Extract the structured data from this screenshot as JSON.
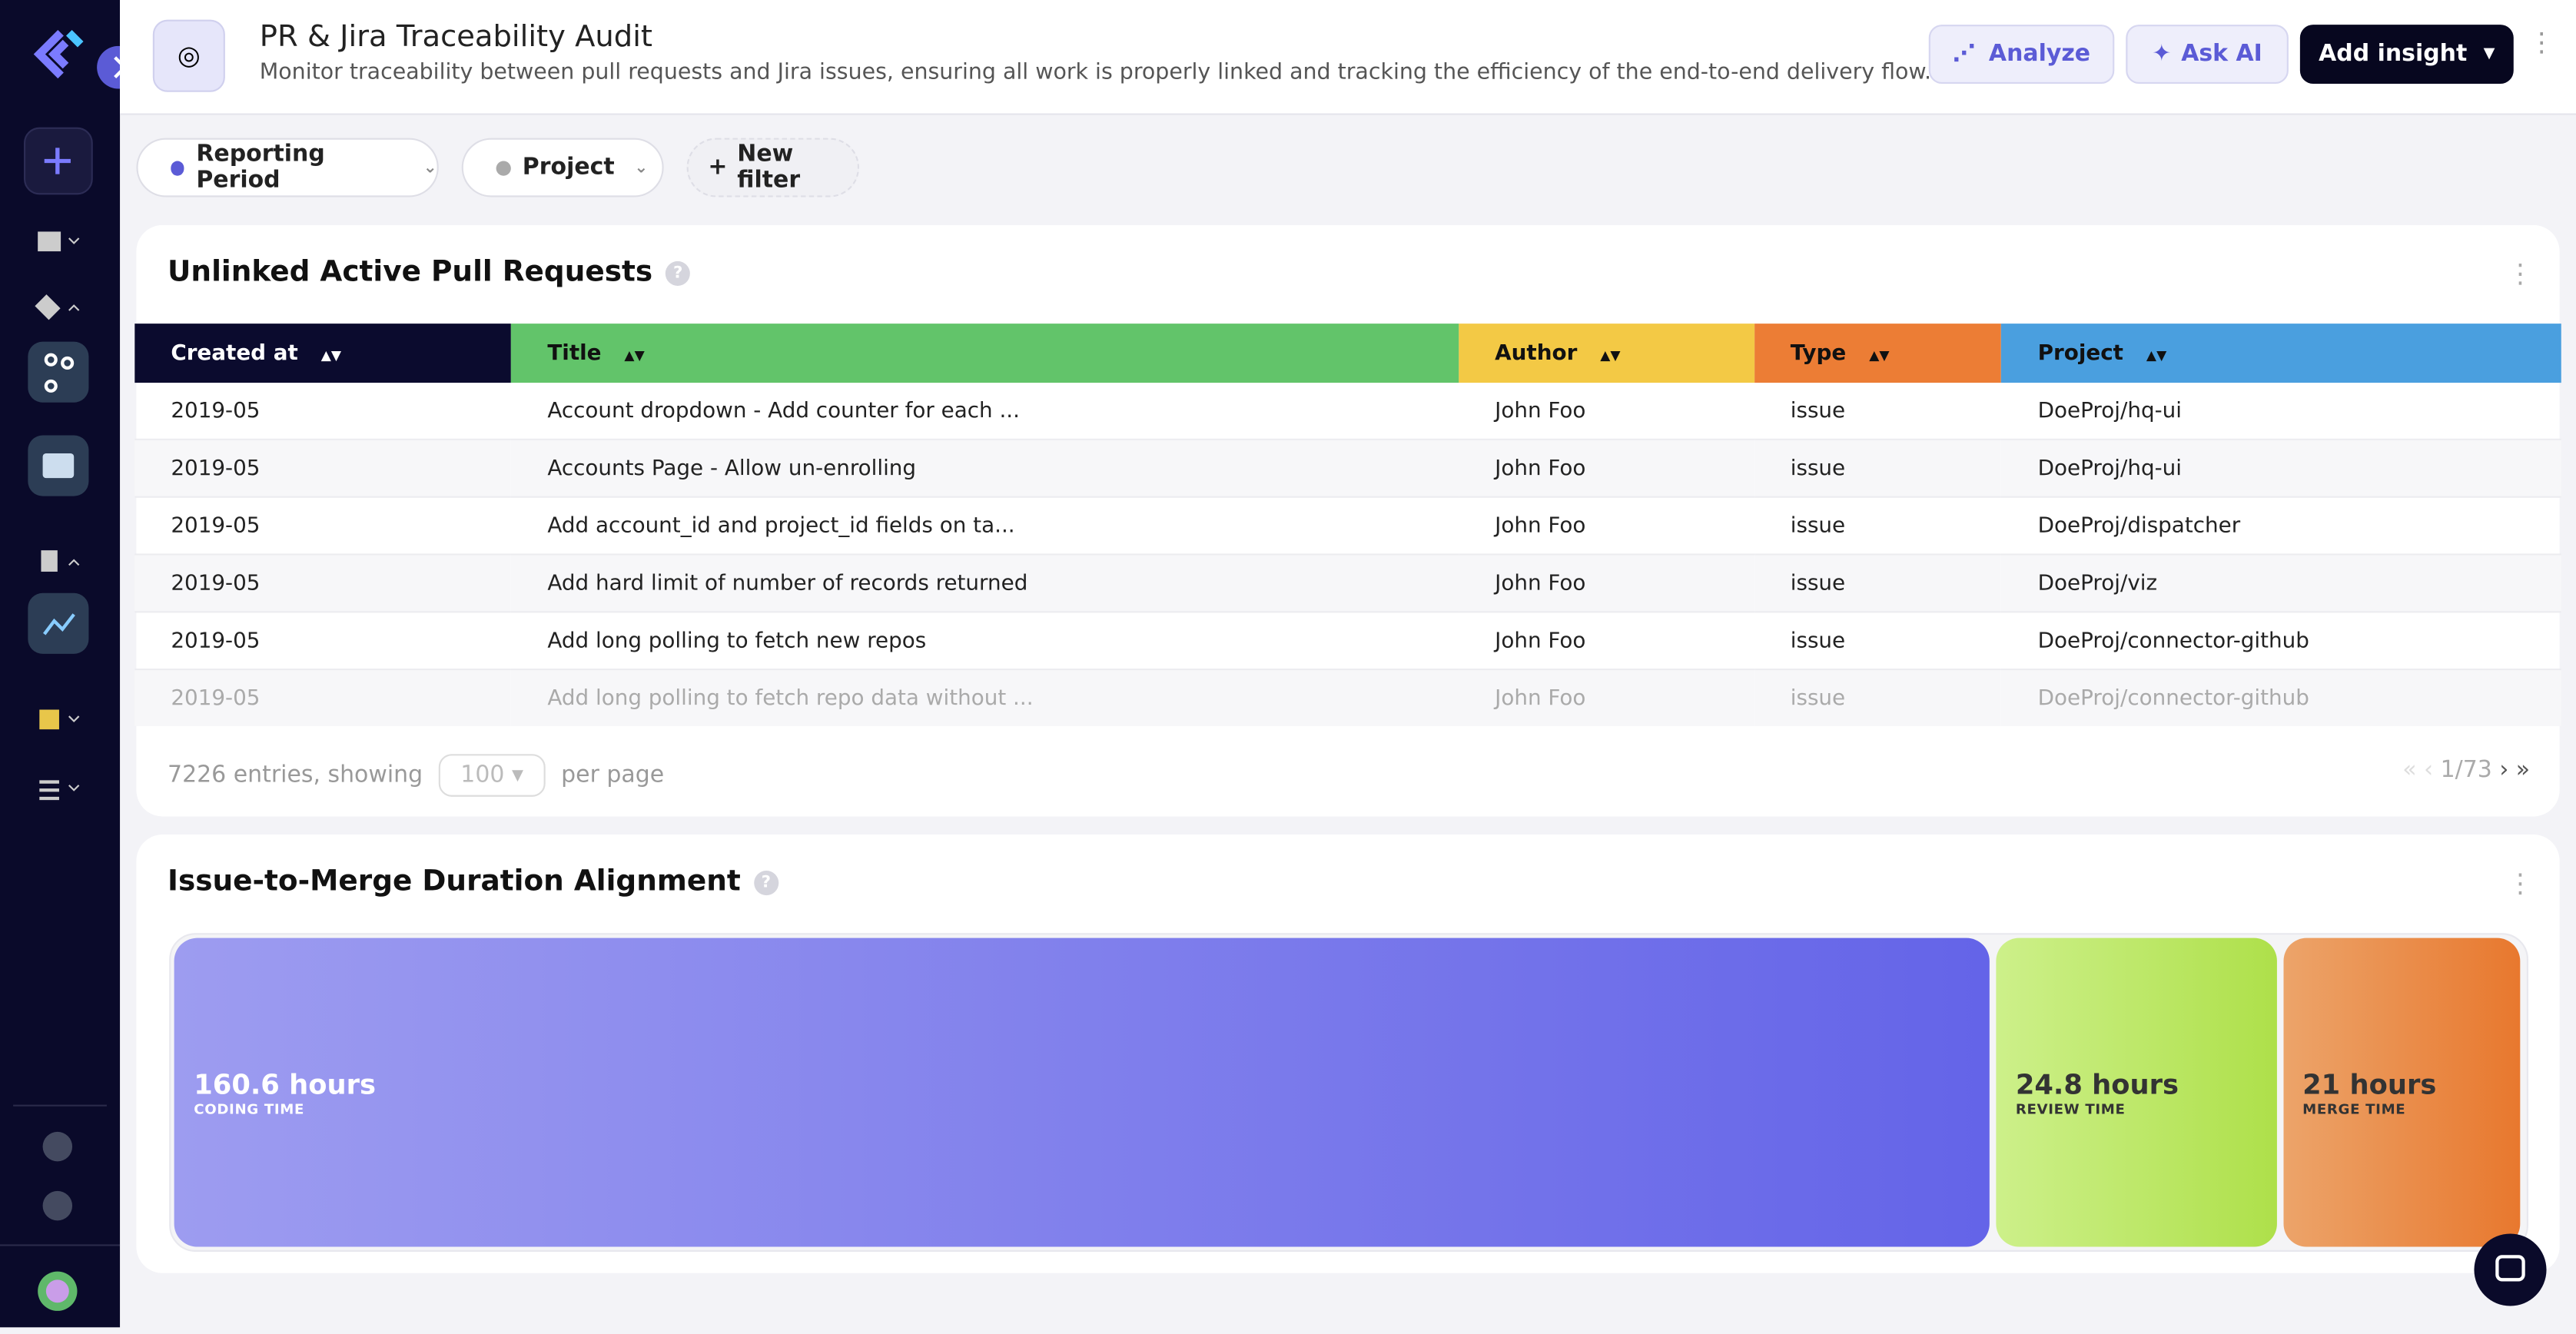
{
  "header": {
    "title": "PR & Jira Traceability Audit",
    "subtitle": "Monitor traceability between pull requests and Jira issues, ensuring all work is properly linked and tracking the efficiency of the end-to-end delivery flow."
  },
  "actions": [
    "Analyze",
    "Ask AI",
    "Add insight"
  ],
  "filters": [
    "Reporting Period",
    "Project",
    "New filter"
  ],
  "table_widget": {
    "title": "Unlinked Active Pull Requests",
    "columns": [
      "Created at",
      "Title",
      "Author",
      "Type",
      "Project"
    ],
    "rows": [
      [
        "2019-05",
        "Account dropdown - Add counter for each ...",
        "John Foo",
        "issue",
        "DoeProj/hq-ui"
      ],
      [
        "2019-05",
        "Accounts Page - Allow un-enrolling",
        "John Foo",
        "issue",
        "DoeProj/hq-ui"
      ],
      [
        "2019-05",
        "Add account_id and project_id fields on ta...",
        "John Foo",
        "issue",
        "DoeProj/dispatcher"
      ],
      [
        "2019-05",
        "Add hard limit of number of records returned",
        "John Foo",
        "issue",
        "DoeProj/viz"
      ],
      [
        "2019-05",
        "Add long polling to fetch new repos",
        "John Foo",
        "issue",
        "DoeProj/connector-github"
      ],
      [
        "2019-05",
        "Add long polling to fetch repo data without ...",
        "John Foo",
        "issue",
        "DoeProj/connector-github"
      ]
    ],
    "footer": {
      "entries": "7226 entries, showing",
      "per_page": "100",
      "per_page_label": "per page",
      "page": "1/73"
    }
  },
  "duration_widget": {
    "title": "Issue-to-Merge Duration Alignment",
    "values": [
      160.6,
      24.8,
      21
    ],
    "value_labels": [
      "160.6 hours",
      "24.8 hours",
      "21 hours"
    ],
    "labels": [
      "CODING TIME",
      "REVIEW TIME",
      "MERGE TIME"
    ]
  }
}
